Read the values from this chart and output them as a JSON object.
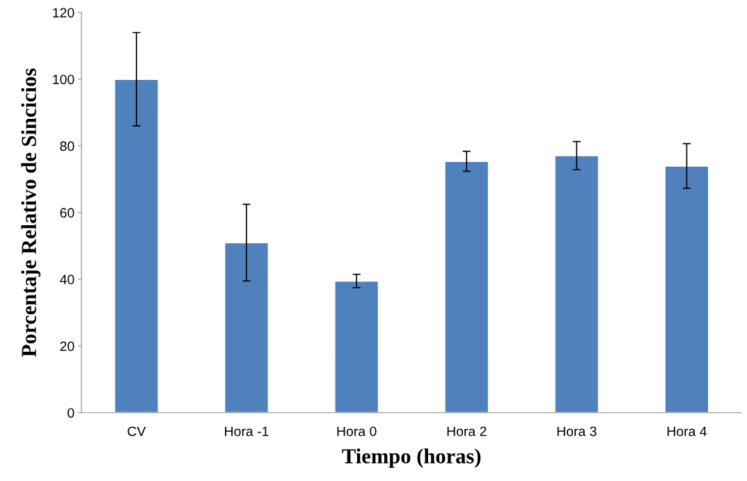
{
  "chart_data": {
    "type": "bar",
    "xlabel": "Tiempo (horas)",
    "ylabel": "Porcentaje Relativo de Sincicios",
    "categories": [
      "CV",
      "Hora -1",
      "Hora 0",
      "Hora 2",
      "Hora 3",
      "Hora 4"
    ],
    "values": [
      100,
      51,
      39.5,
      75.4,
      77.1,
      74
    ],
    "errors": [
      14,
      11.5,
      2,
      3,
      4.2,
      6.7
    ],
    "color": "#4f81bd",
    "ylim": [
      0,
      120
    ],
    "yticks": [
      0,
      20,
      40,
      60,
      80,
      100,
      120
    ],
    "grid": false
  }
}
